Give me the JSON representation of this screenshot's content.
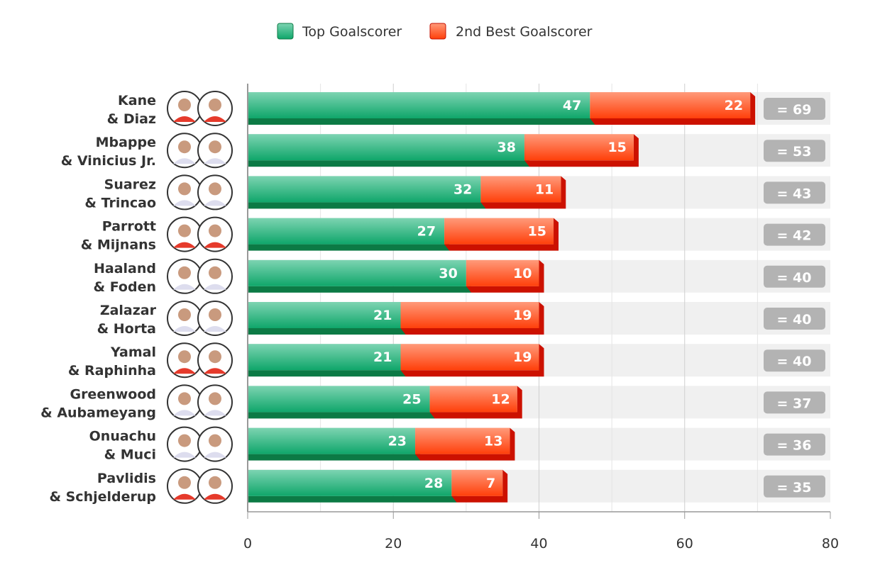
{
  "chart_data": {
    "type": "bar",
    "orientation": "horizontal",
    "stacked": true,
    "categories": [
      "Kane & Diaz",
      "Mbappe & Vinicius Jr.",
      "Suarez & Trincao",
      "Parrott & Mijnans",
      "Haaland &  Foden",
      "Zalazar & Horta",
      "Yamal & Raphinha",
      "Greenwood & Aubameyang",
      "Onuachu & Muci",
      "Pavlidis & Schjelderup"
    ],
    "label_lines": [
      [
        "Kane",
        "& Diaz"
      ],
      [
        "Mbappe",
        "& Vinicius Jr."
      ],
      [
        "Suarez",
        "& Trincao"
      ],
      [
        "Parrott",
        "& Mijnans"
      ],
      [
        "Haaland",
        "&  Foden"
      ],
      [
        "Zalazar",
        "& Horta"
      ],
      [
        "Yamal",
        "& Raphinha"
      ],
      [
        "Greenwood",
        "& Aubameyang"
      ],
      [
        "Onuachu",
        "& Muci"
      ],
      [
        "Pavlidis",
        "& Schjelderup"
      ]
    ],
    "series": [
      {
        "name": "Top Goalscorer",
        "color": "#1aa673",
        "values": [
          47,
          38,
          32,
          27,
          30,
          21,
          21,
          25,
          23,
          28
        ]
      },
      {
        "name": "2nd Best Goalscorer",
        "color": "#ff4a1a",
        "values": [
          22,
          15,
          11,
          15,
          10,
          19,
          19,
          12,
          13,
          7
        ]
      }
    ],
    "totals": [
      "= 69",
      "= 53",
      "= 43",
      "= 42",
      "= 40",
      "= 40",
      "= 40",
      "= 37",
      "= 36",
      "= 35"
    ],
    "xlim": [
      0,
      80
    ],
    "xticks": [
      0,
      20,
      40,
      60,
      80
    ],
    "grid": true,
    "legend_position": "top"
  }
}
